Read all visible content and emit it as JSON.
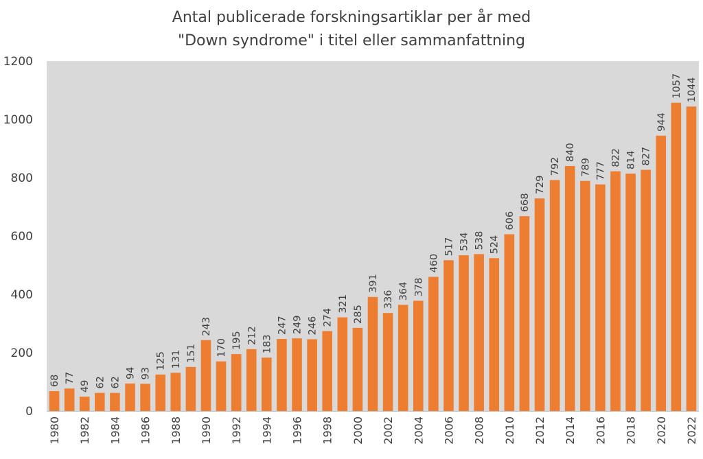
{
  "chart_data": {
    "type": "bar",
    "title_lines": [
      "Antal publicerade forskningsartiklar per år med",
      "\"Down syndrome\" i titel eller sammanfattning"
    ],
    "xlabel": "",
    "ylabel": "",
    "ylim": [
      0,
      1200
    ],
    "yticks": [
      "0",
      "200",
      "400",
      "600",
      "800",
      "1000",
      "1200"
    ],
    "grid": false,
    "legend": "none",
    "colors": {
      "bar": "#ED7D31",
      "plot_background": "#D9D9D9",
      "text": "#404040"
    },
    "categories": [
      "1980",
      "1981",
      "1982",
      "1983",
      "1984",
      "1985",
      "1986",
      "1987",
      "1988",
      "1989",
      "1990",
      "1991",
      "1992",
      "1993",
      "1994",
      "1995",
      "1996",
      "1997",
      "1998",
      "1999",
      "2000",
      "2001",
      "2002",
      "2003",
      "2004",
      "2005",
      "2006",
      "2007",
      "2008",
      "2009",
      "2010",
      "2011",
      "2012",
      "2013",
      "2014",
      "2015",
      "2016",
      "2017",
      "2018",
      "2019",
      "2020",
      "2021",
      "2022"
    ],
    "values": [
      68,
      77,
      49,
      62,
      62,
      94,
      93,
      125,
      131,
      151,
      243,
      170,
      195,
      212,
      183,
      247,
      249,
      246,
      274,
      321,
      285,
      391,
      336,
      364,
      378,
      460,
      517,
      534,
      538,
      524,
      606,
      668,
      729,
      792,
      840,
      789,
      777,
      822,
      814,
      827,
      944,
      1057,
      1044
    ],
    "xtick_labels": [
      "1980",
      "1982",
      "1984",
      "1986",
      "1988",
      "1990",
      "1992",
      "1994",
      "1996",
      "1998",
      "2000",
      "2002",
      "2004",
      "2006",
      "2008",
      "2010",
      "2012",
      "2014",
      "2016",
      "2018",
      "2020",
      "2022"
    ]
  }
}
